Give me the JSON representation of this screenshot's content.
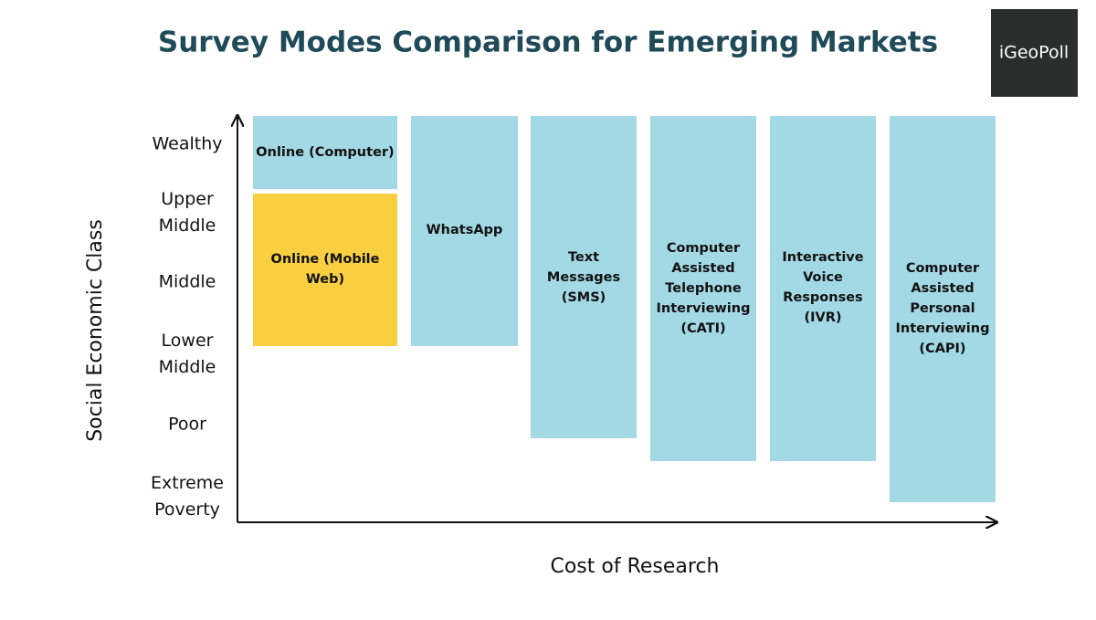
{
  "title": "Survey Modes Comparison for Emerging Markets",
  "logo": "iGeoPoll",
  "y_axis_label": "Social Economic Class",
  "x_axis_label": "Cost of Research",
  "levels": [
    {
      "lines": [
        "Wealthy"
      ]
    },
    {
      "lines": [
        "Upper",
        "Middle"
      ]
    },
    {
      "lines": [
        "Middle"
      ]
    },
    {
      "lines": [
        "Lower",
        "Middle"
      ]
    },
    {
      "lines": [
        "Poor"
      ]
    },
    {
      "lines": [
        "Extreme",
        "Poverty"
      ]
    }
  ],
  "modes": [
    {
      "lines": [
        "Online (Computer)"
      ]
    },
    {
      "lines": [
        "Online (Mobile",
        "Web)"
      ]
    },
    {
      "lines": [
        "WhatsApp"
      ]
    },
    {
      "lines": [
        "Text",
        "Messages",
        "(SMS)"
      ]
    },
    {
      "lines": [
        "Computer",
        "Assisted",
        "Telephone",
        "Interviewing",
        "(CATI)"
      ]
    },
    {
      "lines": [
        "Interactive",
        "Voice",
        "Responses",
        "(IVR)"
      ]
    },
    {
      "lines": [
        "Computer",
        "Assisted",
        "Personal",
        "Interviewing",
        "(CAPI)"
      ]
    }
  ]
}
